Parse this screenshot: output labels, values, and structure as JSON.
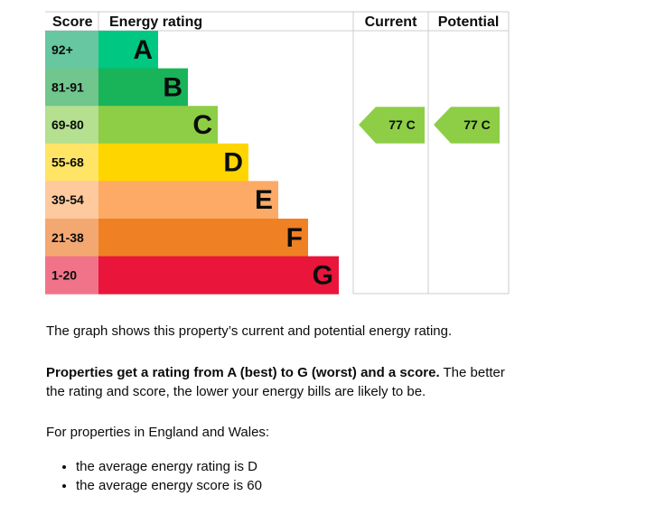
{
  "chart_data": {
    "type": "table",
    "headers": {
      "score": "Score",
      "rating": "Energy rating",
      "current": "Current",
      "potential": "Potential"
    },
    "bands": [
      {
        "letter": "A",
        "range": "92+",
        "color": "#00c781",
        "score_color": "#66c7a0"
      },
      {
        "letter": "B",
        "range": "81-91",
        "color": "#19b459",
        "score_color": "#70c68c"
      },
      {
        "letter": "C",
        "range": "69-80",
        "color": "#8dce46",
        "score_color": "#b4e08f"
      },
      {
        "letter": "D",
        "range": "55-68",
        "color": "#ffd500",
        "score_color": "#ffe466"
      },
      {
        "letter": "E",
        "range": "39-54",
        "color": "#fcaa65",
        "score_color": "#fdc99d"
      },
      {
        "letter": "F",
        "range": "21-38",
        "color": "#ef8023",
        "score_color": "#f4a871"
      },
      {
        "letter": "G",
        "range": "1-20",
        "color": "#e9153b",
        "score_color": "#f0738a"
      }
    ],
    "current": {
      "score": 77,
      "band": "C",
      "label": "77 C"
    },
    "potential": {
      "score": 77,
      "band": "C",
      "label": "77 C"
    }
  },
  "text": {
    "intro": "The graph shows this property’s current and potential energy rating.",
    "bold": "Properties get a rating from A (best) to G (worst) and a score.",
    "rest": " The better the rating and score, the lower your energy bills are likely to be.",
    "region": "For properties in England and Wales:",
    "bullets": [
      "the average energy rating is D",
      "the average energy score is 60"
    ]
  }
}
